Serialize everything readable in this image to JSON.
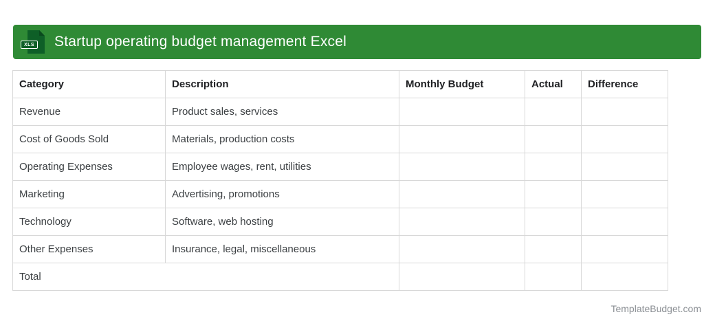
{
  "header": {
    "title": "Startup operating budget management Excel",
    "icon_label": "XLS",
    "bar_color": "#2f8a35",
    "icon_color": "#0e5f27"
  },
  "table": {
    "columns": [
      "Category",
      "Description",
      "Monthly Budget",
      "Actual",
      "Difference"
    ],
    "rows": [
      {
        "category": "Revenue",
        "description": "Product sales, services",
        "monthly_budget": "",
        "actual": "",
        "difference": ""
      },
      {
        "category": "Cost of Goods Sold",
        "description": "Materials, production costs",
        "monthly_budget": "",
        "actual": "",
        "difference": ""
      },
      {
        "category": "Operating Expenses",
        "description": "Employee wages, rent, utilities",
        "monthly_budget": "",
        "actual": "",
        "difference": ""
      },
      {
        "category": "Marketing",
        "description": "Advertising, promotions",
        "monthly_budget": "",
        "actual": "",
        "difference": ""
      },
      {
        "category": "Technology",
        "description": "Software, web hosting",
        "monthly_budget": "",
        "actual": "",
        "difference": ""
      },
      {
        "category": "Other Expenses",
        "description": "Insurance, legal, miscellaneous",
        "monthly_budget": "",
        "actual": "",
        "difference": ""
      }
    ],
    "total_row": {
      "label": "Total",
      "monthly_budget": "",
      "actual": "",
      "difference": ""
    },
    "border_color": "#d8d8d8"
  },
  "footer": {
    "site": "TemplateBudget.com"
  }
}
